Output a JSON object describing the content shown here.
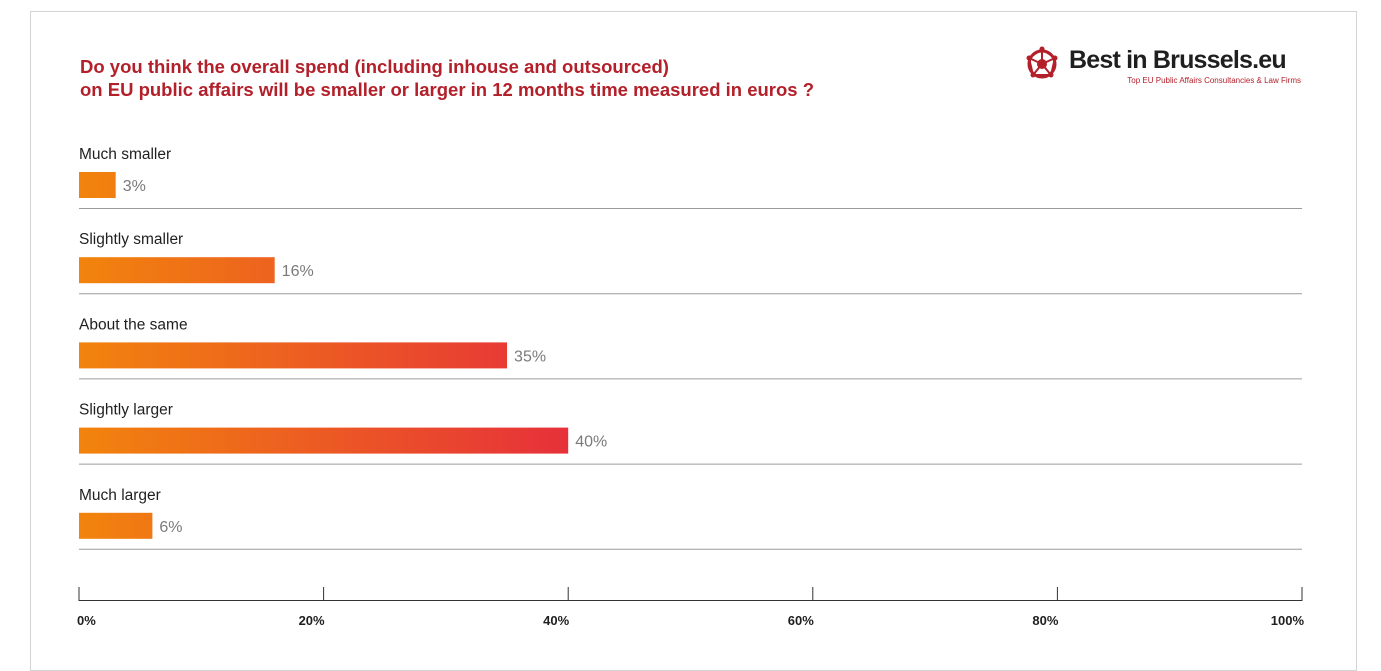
{
  "title_lines": [
    "Do you think the overall spend (including inhouse and outsourced)",
    "on EU public affairs will be smaller or larger in 12 months time measured in euros ?"
  ],
  "logo": {
    "brand": "Best in Brussels.eu",
    "tagline": "Top EU Public Affairs Consultancies & Law Firms",
    "icon": "globe-network-icon",
    "colors": {
      "brand_red": "#b3202a",
      "text": "#1f1f1f"
    }
  },
  "chart_data": {
    "type": "bar",
    "orientation": "horizontal",
    "categories": [
      "Much smaller",
      "Slightly smaller",
      "About the same",
      "Slightly larger",
      "Much larger"
    ],
    "values": [
      3,
      16,
      35,
      40,
      6
    ],
    "value_labels": [
      "3%",
      "16%",
      "35%",
      "40%",
      "6%"
    ],
    "xlim": [
      0,
      100
    ],
    "x_ticks": [
      0,
      20,
      40,
      60,
      80,
      100
    ],
    "x_tick_labels": [
      "0%",
      "20%",
      "40%",
      "60%",
      "80%",
      "100%"
    ],
    "grid": false,
    "legend": "none",
    "colors": {
      "bar_start": "#f2840d",
      "bar_end": "#e6303a",
      "separator": "#9b9b9b",
      "axis": "#333333"
    }
  }
}
